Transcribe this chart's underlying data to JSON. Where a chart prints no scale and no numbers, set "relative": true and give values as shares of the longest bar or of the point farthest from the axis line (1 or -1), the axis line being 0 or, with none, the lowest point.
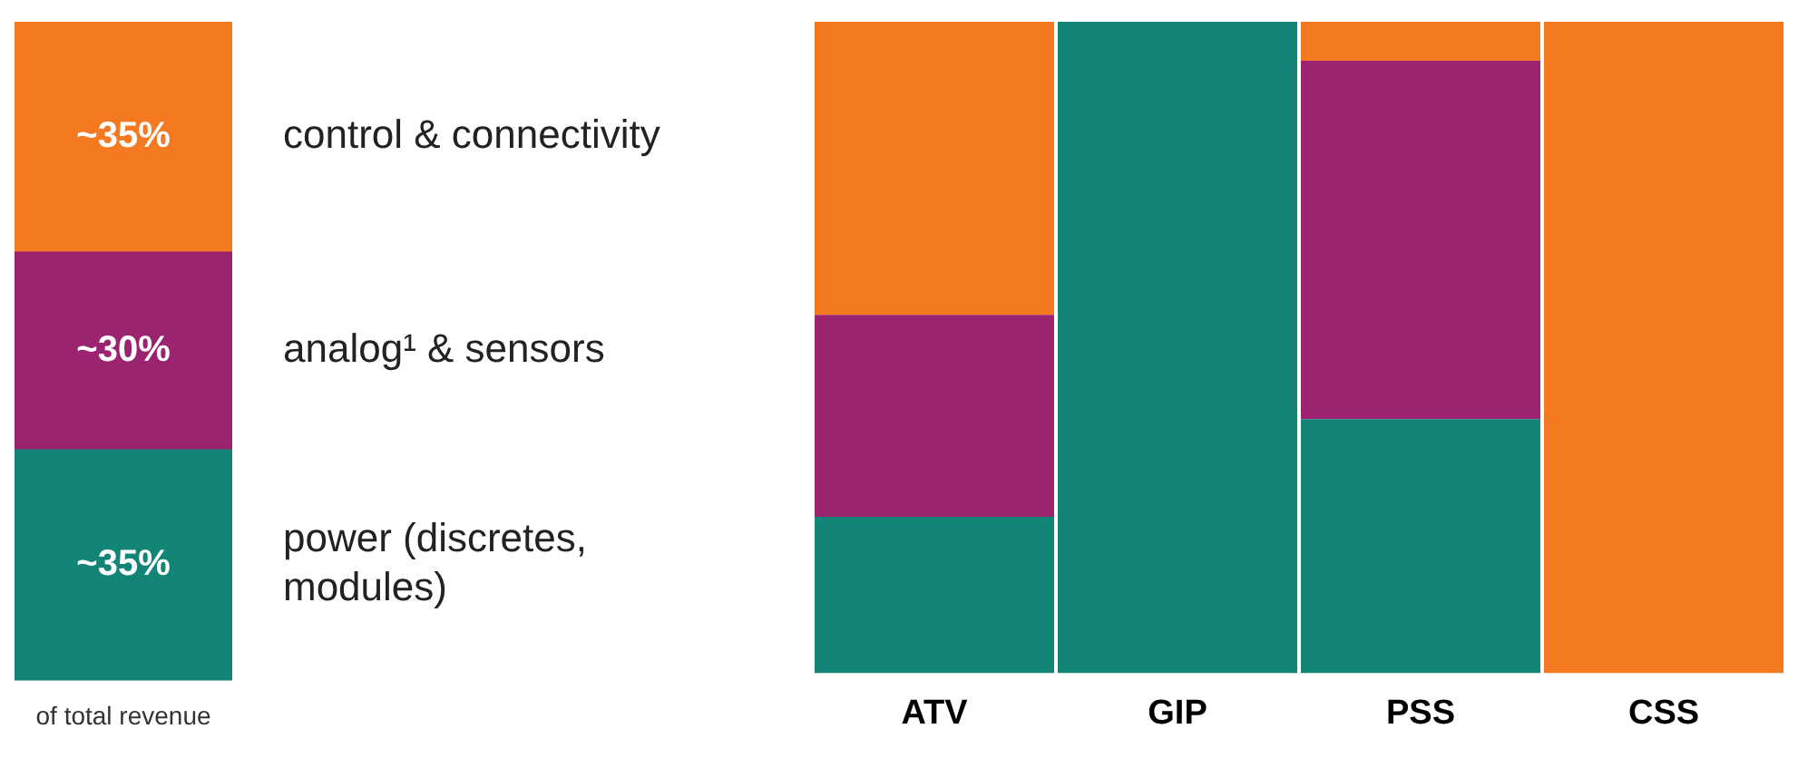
{
  "chart_data": [
    {
      "type": "bar",
      "stacked": true,
      "categories": [
        null
      ],
      "xlabel": "of total revenue",
      "legend": false,
      "series": [
        {
          "name": "power (discretes, modules)",
          "color": "#138577",
          "values": [
            35
          ],
          "value_labels": [
            "~35%"
          ]
        },
        {
          "name": "analog¹ & sensors",
          "color": "#9b2370",
          "values": [
            30
          ],
          "value_labels": [
            "~30%"
          ]
        },
        {
          "name": "control & connectivity",
          "color": "#f47920",
          "values": [
            35
          ],
          "value_labels": [
            "~35%"
          ]
        }
      ]
    },
    {
      "type": "bar",
      "stacked": true,
      "relative": true,
      "categories": [
        "ATV",
        "GIP",
        "PSS",
        "CSS"
      ],
      "legend": false,
      "series": [
        {
          "color": "#138577",
          "values": [
            0.24,
            1,
            0.39,
            null
          ]
        },
        {
          "color": "#9b2370",
          "values": [
            0.31,
            null,
            0.55,
            null
          ]
        },
        {
          "color": "#f47920",
          "values": [
            0.45,
            null,
            0.06,
            1
          ]
        }
      ]
    }
  ]
}
